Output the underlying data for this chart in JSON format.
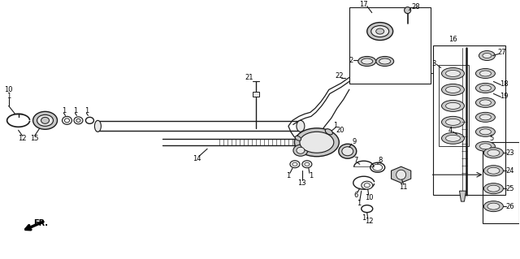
{
  "bg_color": "#ffffff",
  "line_color": "#1a1a1a",
  "gray_fill": "#c8c8c8",
  "light_gray": "#e8e8e8",
  "mid_gray": "#a0a0a0",
  "figsize": [
    6.4,
    3.19
  ],
  "dpi": 100
}
